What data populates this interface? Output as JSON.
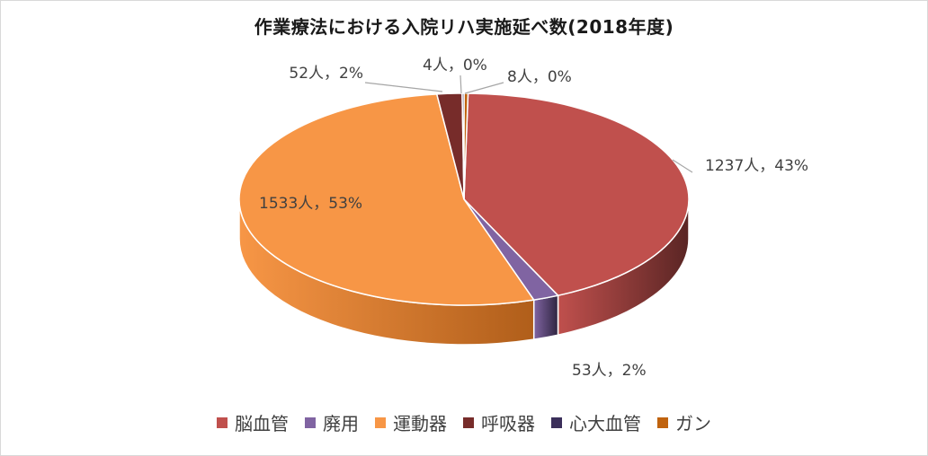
{
  "chart_data": {
    "type": "pie",
    "title": "作業療法における入院リハ実施延べ数(2018年度)",
    "series": [
      {
        "name": "脳血管",
        "value": 1237,
        "percent": "43%",
        "label": "1237人，43%",
        "color": "#c0504d",
        "side": "#5a2524"
      },
      {
        "name": "廃用",
        "value": 53,
        "percent": "2%",
        "label": "53人，2%",
        "color": "#8064a2",
        "side": "#2f2540"
      },
      {
        "name": "運動器",
        "value": 1533,
        "percent": "53%",
        "label": "1533人，53%",
        "color": "#f79646",
        "side": "#b05e1a"
      },
      {
        "name": "呼吸器",
        "value": 52,
        "percent": "2%",
        "label": "52人，2%",
        "color": "#772c2a",
        "side": "#3f1614"
      },
      {
        "name": "心大血管",
        "value": 4,
        "percent": "0%",
        "label": "4人，0%",
        "color": "#3b2f5a",
        "side": "#1f1832"
      },
      {
        "name": "ガン",
        "value": 8,
        "percent": "0%",
        "label": "8人，0%",
        "color": "#c0630e",
        "side": "#6e3806"
      }
    ],
    "legend_position": "bottom",
    "style": "3d-pie"
  }
}
